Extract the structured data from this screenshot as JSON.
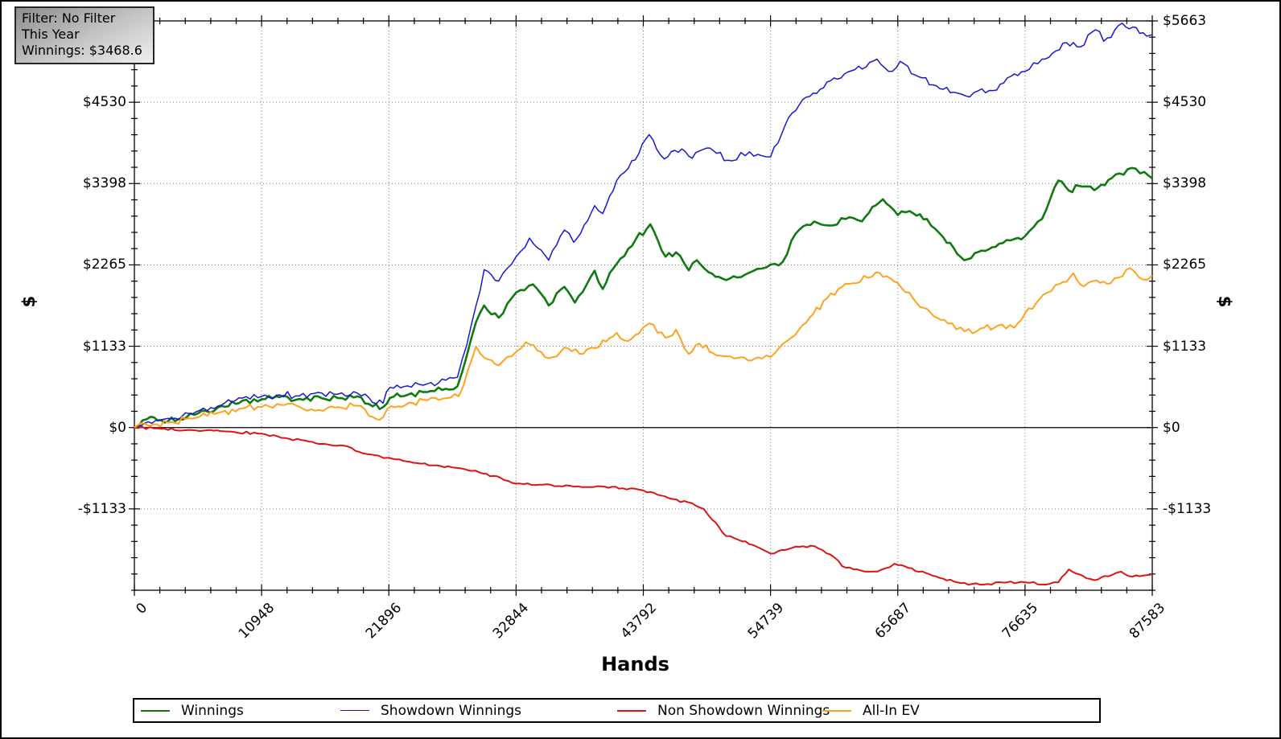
{
  "tooltip": {
    "lines": [
      "Filter: No Filter",
      "This Year",
      "Winnings: $3468.6"
    ]
  },
  "chart_data": {
    "type": "line",
    "xlabel": "Hands",
    "ylabel_left": "$",
    "ylabel_right": "$",
    "xlim": [
      0,
      87583
    ],
    "ylim": [
      -2265,
      5663
    ],
    "x_minor_step": 2189.575,
    "y_minor_step": 226.52,
    "grid": "dotted",
    "zero_line": true,
    "legend_position": "bottom",
    "x_ticks": [
      {
        "value": 0,
        "label": "0"
      },
      {
        "value": 10948,
        "label": "10948"
      },
      {
        "value": 21896,
        "label": "21896"
      },
      {
        "value": 32844,
        "label": "32844"
      },
      {
        "value": 43792,
        "label": "43792"
      },
      {
        "value": 54739,
        "label": "54739"
      },
      {
        "value": 65687,
        "label": "65687"
      },
      {
        "value": 76635,
        "label": "76635"
      },
      {
        "value": 87583,
        "label": "87583"
      }
    ],
    "y_ticks": [
      {
        "value": 5663,
        "label": "$5663",
        "left": false,
        "right": true
      },
      {
        "value": 4530,
        "label": "$4530",
        "left": true,
        "right": true
      },
      {
        "value": 3398,
        "label": "$3398",
        "left": true,
        "right": true
      },
      {
        "value": 2265,
        "label": "$2265",
        "left": true,
        "right": true
      },
      {
        "value": 1133,
        "label": "$1133",
        "left": true,
        "right": true
      },
      {
        "value": 0,
        "label": "$0",
        "left": true,
        "right": true
      },
      {
        "value": -1133,
        "label": "-$1133",
        "left": true,
        "right": true
      }
    ],
    "series": [
      {
        "name": "Winnings",
        "color": "#107a10",
        "width": 2.6,
        "jitter": 50,
        "points": [
          [
            0,
            0
          ],
          [
            1400,
            150
          ],
          [
            2600,
            70
          ],
          [
            3800,
            120
          ],
          [
            5500,
            200
          ],
          [
            7500,
            300
          ],
          [
            9300,
            375
          ],
          [
            10948,
            395
          ],
          [
            12500,
            425
          ],
          [
            14200,
            400
          ],
          [
            15800,
            435
          ],
          [
            17500,
            410
          ],
          [
            19200,
            435
          ],
          [
            20500,
            295
          ],
          [
            21400,
            285
          ],
          [
            22000,
            415
          ],
          [
            23500,
            455
          ],
          [
            25200,
            495
          ],
          [
            26800,
            540
          ],
          [
            27800,
            575
          ],
          [
            28600,
            1000
          ],
          [
            29400,
            1470
          ],
          [
            30100,
            1700
          ],
          [
            31350,
            1530
          ],
          [
            32844,
            1880
          ],
          [
            34300,
            1995
          ],
          [
            35650,
            1700
          ],
          [
            37000,
            1960
          ],
          [
            37900,
            1740
          ],
          [
            39600,
            2185
          ],
          [
            40300,
            1930
          ],
          [
            41500,
            2280
          ],
          [
            42500,
            2490
          ],
          [
            44400,
            2830
          ],
          [
            45700,
            2380
          ],
          [
            46600,
            2440
          ],
          [
            47700,
            2190
          ],
          [
            48400,
            2330
          ],
          [
            49400,
            2165
          ],
          [
            50600,
            2075
          ],
          [
            52200,
            2095
          ],
          [
            53600,
            2210
          ],
          [
            54739,
            2270
          ],
          [
            55800,
            2310
          ],
          [
            56900,
            2700
          ],
          [
            58500,
            2870
          ],
          [
            60100,
            2815
          ],
          [
            61200,
            2905
          ],
          [
            62600,
            2870
          ],
          [
            64400,
            3180
          ],
          [
            65687,
            2960
          ],
          [
            66700,
            3015
          ],
          [
            68200,
            2905
          ],
          [
            69600,
            2650
          ],
          [
            71400,
            2330
          ],
          [
            72900,
            2465
          ],
          [
            74400,
            2560
          ],
          [
            75700,
            2625
          ],
          [
            76635,
            2665
          ],
          [
            78100,
            2905
          ],
          [
            79500,
            3440
          ],
          [
            80400,
            3300
          ],
          [
            81600,
            3355
          ],
          [
            82600,
            3305
          ],
          [
            84100,
            3475
          ],
          [
            85800,
            3615
          ],
          [
            86900,
            3560
          ],
          [
            87583,
            3470
          ]
        ]
      },
      {
        "name": "Showdown Winnings",
        "color": "#1717d6",
        "width": 1.5,
        "jitter": 55,
        "points": [
          [
            0,
            0
          ],
          [
            1500,
            60
          ],
          [
            3200,
            120
          ],
          [
            5000,
            190
          ],
          [
            7200,
            300
          ],
          [
            9300,
            410
          ],
          [
            10948,
            435
          ],
          [
            12500,
            455
          ],
          [
            14200,
            440
          ],
          [
            15800,
            490
          ],
          [
            17500,
            465
          ],
          [
            19200,
            480
          ],
          [
            20500,
            350
          ],
          [
            21400,
            340
          ],
          [
            22000,
            560
          ],
          [
            23500,
            580
          ],
          [
            25200,
            610
          ],
          [
            26800,
            660
          ],
          [
            27800,
            700
          ],
          [
            28600,
            1150
          ],
          [
            29400,
            1700
          ],
          [
            30100,
            2200
          ],
          [
            31350,
            2040
          ],
          [
            32844,
            2380
          ],
          [
            34000,
            2640
          ],
          [
            35650,
            2330
          ],
          [
            37000,
            2750
          ],
          [
            37800,
            2580
          ],
          [
            39600,
            3090
          ],
          [
            40300,
            2980
          ],
          [
            41500,
            3440
          ],
          [
            42500,
            3610
          ],
          [
            44300,
            4080
          ],
          [
            45600,
            3740
          ],
          [
            47100,
            3880
          ],
          [
            48000,
            3750
          ],
          [
            48900,
            3870
          ],
          [
            50100,
            3820
          ],
          [
            51400,
            3715
          ],
          [
            52200,
            3830
          ],
          [
            53300,
            3780
          ],
          [
            54739,
            3770
          ],
          [
            55700,
            4090
          ],
          [
            56600,
            4380
          ],
          [
            57800,
            4600
          ],
          [
            59900,
            4830
          ],
          [
            62000,
            4985
          ],
          [
            63900,
            5130
          ],
          [
            64900,
            4960
          ],
          [
            65900,
            5100
          ],
          [
            67500,
            4885
          ],
          [
            69000,
            4760
          ],
          [
            70800,
            4660
          ],
          [
            71500,
            4620
          ],
          [
            72600,
            4690
          ],
          [
            74200,
            4700
          ],
          [
            75400,
            4890
          ],
          [
            76635,
            4960
          ],
          [
            78100,
            5130
          ],
          [
            79300,
            5245
          ],
          [
            80200,
            5360
          ],
          [
            81400,
            5300
          ],
          [
            82700,
            5540
          ],
          [
            83400,
            5380
          ],
          [
            85000,
            5630
          ],
          [
            86200,
            5570
          ],
          [
            87100,
            5450
          ],
          [
            87583,
            5470
          ]
        ]
      },
      {
        "name": "Non Showdown Winnings",
        "color": "#dc1414",
        "width": 2,
        "jitter": 20,
        "points": [
          [
            0,
            0
          ],
          [
            2000,
            -10
          ],
          [
            5000,
            -35
          ],
          [
            8000,
            -55
          ],
          [
            10948,
            -85
          ],
          [
            13000,
            -145
          ],
          [
            15000,
            -195
          ],
          [
            16500,
            -230
          ],
          [
            18000,
            -250
          ],
          [
            19700,
            -360
          ],
          [
            21000,
            -390
          ],
          [
            21896,
            -420
          ],
          [
            24000,
            -490
          ],
          [
            26000,
            -525
          ],
          [
            28000,
            -565
          ],
          [
            30000,
            -640
          ],
          [
            31500,
            -700
          ],
          [
            32844,
            -780
          ],
          [
            34500,
            -800
          ],
          [
            36500,
            -815
          ],
          [
            38500,
            -830
          ],
          [
            40500,
            -825
          ],
          [
            42000,
            -845
          ],
          [
            43792,
            -875
          ],
          [
            45000,
            -935
          ],
          [
            46300,
            -995
          ],
          [
            48000,
            -1055
          ],
          [
            49000,
            -1135
          ],
          [
            50000,
            -1320
          ],
          [
            50900,
            -1510
          ],
          [
            52000,
            -1565
          ],
          [
            53500,
            -1655
          ],
          [
            54739,
            -1755
          ],
          [
            56000,
            -1705
          ],
          [
            57200,
            -1660
          ],
          [
            58200,
            -1645
          ],
          [
            59200,
            -1705
          ],
          [
            60200,
            -1805
          ],
          [
            60900,
            -1930
          ],
          [
            62200,
            -1975
          ],
          [
            63600,
            -2005
          ],
          [
            64600,
            -1960
          ],
          [
            65400,
            -1895
          ],
          [
            66600,
            -1955
          ],
          [
            68100,
            -2025
          ],
          [
            69600,
            -2105
          ],
          [
            71100,
            -2165
          ],
          [
            73100,
            -2185
          ],
          [
            75100,
            -2155
          ],
          [
            76635,
            -2155
          ],
          [
            78100,
            -2185
          ],
          [
            79500,
            -2155
          ],
          [
            80400,
            -1975
          ],
          [
            81600,
            -2065
          ],
          [
            82600,
            -2125
          ],
          [
            84100,
            -2055
          ],
          [
            84900,
            -2005
          ],
          [
            85900,
            -2075
          ],
          [
            87100,
            -2055
          ],
          [
            87583,
            -2045
          ]
        ]
      },
      {
        "name": "All-In EV",
        "color": "#ffa21f",
        "width": 2,
        "jitter": 50,
        "points": [
          [
            0,
            0
          ],
          [
            1600,
            45
          ],
          [
            3200,
            75
          ],
          [
            5000,
            125
          ],
          [
            7200,
            205
          ],
          [
            9300,
            265
          ],
          [
            10948,
            285
          ],
          [
            12600,
            315
          ],
          [
            14200,
            290
          ],
          [
            15900,
            245
          ],
          [
            17600,
            285
          ],
          [
            19200,
            305
          ],
          [
            20500,
            150
          ],
          [
            21400,
            145
          ],
          [
            22100,
            300
          ],
          [
            23600,
            345
          ],
          [
            25200,
            380
          ],
          [
            26900,
            410
          ],
          [
            27900,
            435
          ],
          [
            28700,
            800
          ],
          [
            29400,
            1130
          ],
          [
            30100,
            975
          ],
          [
            31350,
            865
          ],
          [
            32844,
            1055
          ],
          [
            33700,
            1190
          ],
          [
            35650,
            965
          ],
          [
            37000,
            1115
          ],
          [
            38600,
            1025
          ],
          [
            39700,
            1105
          ],
          [
            41500,
            1320
          ],
          [
            42500,
            1205
          ],
          [
            44300,
            1450
          ],
          [
            45700,
            1250
          ],
          [
            46600,
            1365
          ],
          [
            47700,
            1025
          ],
          [
            48600,
            1170
          ],
          [
            50100,
            1005
          ],
          [
            52200,
            980
          ],
          [
            54000,
            960
          ],
          [
            54739,
            980
          ],
          [
            56200,
            1210
          ],
          [
            57800,
            1460
          ],
          [
            59600,
            1800
          ],
          [
            60900,
            1960
          ],
          [
            62100,
            2010
          ],
          [
            63800,
            2160
          ],
          [
            65687,
            2015
          ],
          [
            67000,
            1800
          ],
          [
            68500,
            1600
          ],
          [
            70000,
            1450
          ],
          [
            71450,
            1340
          ],
          [
            72800,
            1380
          ],
          [
            74300,
            1420
          ],
          [
            75700,
            1390
          ],
          [
            76635,
            1590
          ],
          [
            78200,
            1850
          ],
          [
            79600,
            2000
          ],
          [
            80800,
            2150
          ],
          [
            81700,
            1965
          ],
          [
            82800,
            2050
          ],
          [
            84000,
            2010
          ],
          [
            85700,
            2220
          ],
          [
            86800,
            2060
          ],
          [
            87583,
            2115
          ]
        ]
      }
    ]
  }
}
